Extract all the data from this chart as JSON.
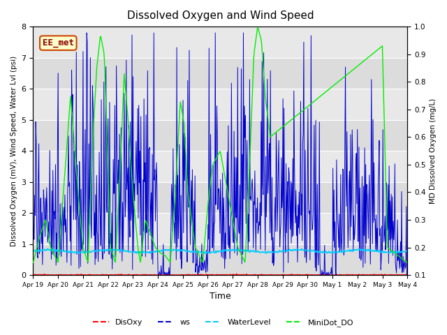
{
  "title": "Dissolved Oxygen and Wind Speed",
  "ylabel_left": "Dissolved Oxygen (mV), Wind Speed, Water Lvl (psi)",
  "ylabel_right": "MD Dissolved Oxygen (mg/L)",
  "xlabel": "Time",
  "ylim_left": [
    0.0,
    8.0
  ],
  "ylim_right": [
    0.1,
    1.0
  ],
  "xtick_labels": [
    "Apr 19",
    "Apr 20",
    "Apr 21",
    "Apr 22",
    "Apr 23",
    "Apr 24",
    "Apr 25",
    "Apr 26",
    "Apr 27",
    "Apr 28",
    "Apr 29",
    "Apr 30",
    "May 1",
    "May 2",
    "May 3",
    "May 4"
  ],
  "annotation_text": "EE_met",
  "legend_labels": [
    "DisOxy",
    "ws",
    "WaterLevel",
    "MiniDot_DO"
  ],
  "legend_colors": [
    "#ff0000",
    "#0000cd",
    "#00ccff",
    "#00ee00"
  ],
  "bg_color": "#e0e0e0",
  "grid_color": "#ffffff",
  "disoxy_color": "#ff0000",
  "ws_color": "#0000cd",
  "water_color": "#00ccff",
  "minidot_color": "#00ee00",
  "band1_color": "#d8d8d8",
  "band2_color": "#c8c8c8"
}
